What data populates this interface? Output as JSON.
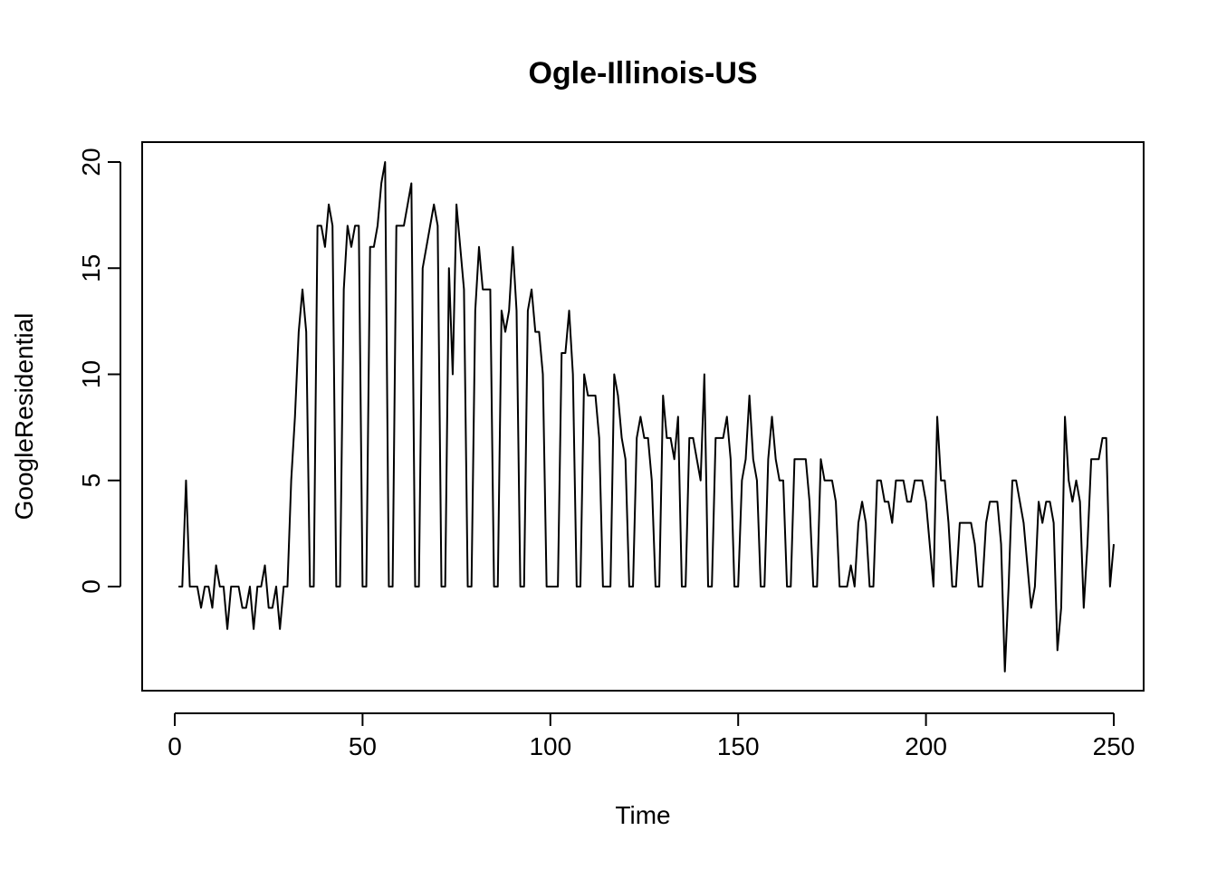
{
  "chart_data": {
    "type": "line",
    "title": "Ogle-Illinois-US",
    "xlabel": "Time",
    "ylabel": "GoogleResidential",
    "xlim": [
      1,
      248
    ],
    "ylim": [
      -4,
      20
    ],
    "xticks": [
      0,
      50,
      100,
      150,
      200,
      250
    ],
    "yticks": [
      0,
      5,
      10,
      15,
      20
    ],
    "grid": false,
    "legend": "none",
    "line_color": "#000000",
    "x_start": 1,
    "series": [
      {
        "values": [
          0,
          0,
          5,
          0,
          0,
          0,
          -1,
          0,
          0,
          -1,
          1,
          0,
          0,
          -2,
          0,
          0,
          0,
          -1,
          -1,
          0,
          -2,
          0,
          0,
          1,
          -1,
          -1,
          0,
          -2,
          0,
          0,
          5,
          8,
          12,
          14,
          12,
          0,
          0,
          17,
          17,
          16,
          18,
          17,
          0,
          0,
          14,
          17,
          16,
          17,
          17,
          0,
          0,
          16,
          16,
          17,
          19,
          20,
          0,
          0,
          17,
          17,
          17,
          18,
          19,
          0,
          0,
          15,
          16,
          17,
          18,
          17,
          0,
          0,
          15,
          10,
          18,
          16,
          14,
          0,
          0,
          13,
          16,
          14,
          14,
          14,
          0,
          0,
          13,
          12,
          13,
          16,
          13,
          0,
          0,
          13,
          14,
          12,
          12,
          10,
          0,
          0,
          0,
          0,
          11,
          11,
          13,
          10,
          0,
          0,
          10,
          9,
          9,
          9,
          7,
          0,
          0,
          0,
          10,
          9,
          7,
          6,
          0,
          0,
          7,
          8,
          7,
          7,
          5,
          0,
          0,
          9,
          7,
          7,
          6,
          8,
          0,
          0,
          7,
          7,
          6,
          5,
          10,
          0,
          0,
          7,
          7,
          7,
          8,
          6,
          0,
          0,
          5,
          6,
          9,
          6,
          5,
          0,
          0,
          6,
          8,
          6,
          5,
          5,
          0,
          0,
          6,
          6,
          6,
          6,
          4,
          0,
          0,
          6,
          5,
          5,
          5,
          4,
          0,
          0,
          0,
          1,
          0,
          3,
          4,
          3,
          0,
          0,
          5,
          5,
          4,
          4,
          3,
          5,
          5,
          5,
          4,
          4,
          5,
          5,
          5,
          4,
          2,
          0,
          8,
          5,
          5,
          3,
          0,
          0,
          3,
          3,
          3,
          3,
          2,
          0,
          0,
          3,
          4,
          4,
          4,
          2,
          -4,
          0,
          5,
          5,
          4,
          3,
          1,
          -1,
          0,
          4,
          3,
          4,
          4,
          3,
          -3,
          -1,
          8,
          5,
          4,
          5,
          4,
          -1,
          2,
          6,
          6,
          6,
          7,
          7,
          0,
          2
        ]
      }
    ]
  }
}
